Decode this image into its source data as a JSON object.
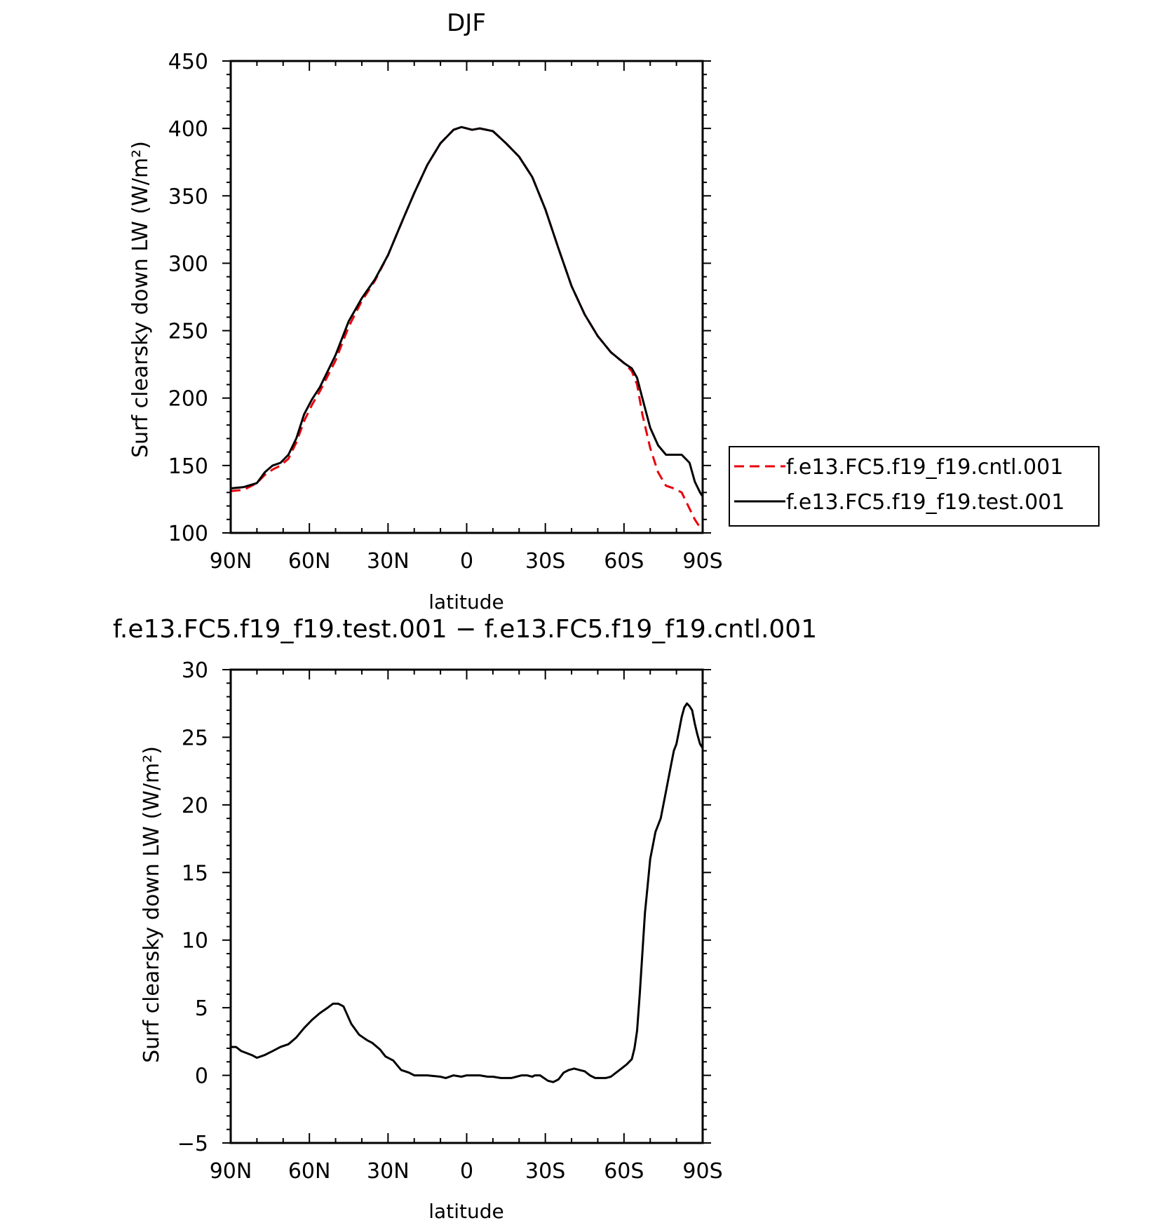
{
  "chart_data": [
    {
      "type": "line",
      "title": "DJF",
      "xlabel": "latitude",
      "ylabel": "Surf clearsky down LW (W/m²)",
      "xlim": [
        90,
        -90
      ],
      "ylim": [
        100,
        450
      ],
      "xticks": [
        90,
        60,
        30,
        0,
        -30,
        -60,
        -90
      ],
      "xticklabels": [
        "90N",
        "60N",
        "30N",
        "0",
        "30S",
        "60S",
        "90S"
      ],
      "yticks": [
        100,
        150,
        200,
        250,
        300,
        350,
        400,
        450
      ],
      "yticklabels": [
        "100",
        "150",
        "200",
        "250",
        "300",
        "350",
        "400",
        "450"
      ],
      "series": [
        {
          "name": "f.e13.FC5.f19_f19.cntl.001",
          "color": "#e8000b",
          "dash": "dashed",
          "x": [
            90,
            85,
            80,
            77,
            74,
            71,
            68,
            65,
            62,
            59,
            56,
            50,
            45,
            40,
            35,
            30,
            27,
            24,
            20,
            15,
            10,
            5,
            2,
            0,
            -2,
            -5,
            -10,
            -15,
            -20,
            -25,
            -30,
            -35,
            -40,
            -45,
            -50,
            -55,
            -60,
            -63,
            -65,
            -67,
            -70,
            -73,
            -76,
            -79,
            -82,
            -85,
            -87,
            -89,
            -90
          ],
          "y": [
            131,
            132,
            137,
            143,
            147,
            150,
            155,
            167,
            183,
            195,
            205,
            228,
            253,
            272,
            287,
            306,
            320,
            334,
            352,
            373,
            389,
            399,
            401,
            400,
            399,
            400,
            398,
            389,
            379,
            364,
            340,
            311,
            283,
            262,
            246,
            234,
            226,
            220,
            210,
            188,
            163,
            145,
            135,
            133,
            130,
            118,
            110,
            104,
            102
          ]
        },
        {
          "name": "f.e13.FC5.f19_f19.test.001",
          "color": "#000000",
          "dash": "solid",
          "x": [
            90,
            85,
            80,
            77,
            74,
            71,
            68,
            65,
            62,
            59,
            56,
            50,
            45,
            40,
            35,
            30,
            27,
            24,
            20,
            15,
            10,
            5,
            2,
            0,
            -2,
            -5,
            -10,
            -15,
            -20,
            -25,
            -30,
            -35,
            -40,
            -45,
            -50,
            -55,
            -60,
            -63,
            -65,
            -67,
            -70,
            -73,
            -76,
            -79,
            -82,
            -85,
            -87,
            -89,
            -90
          ],
          "y": [
            133,
            134,
            137,
            145,
            150,
            152,
            158,
            170,
            188,
            199,
            208,
            232,
            257,
            274,
            288,
            306,
            320,
            334,
            352,
            373,
            389,
            399,
            401,
            400,
            399,
            400,
            398,
            389,
            379,
            364,
            340,
            311,
            283,
            262,
            246,
            234,
            226,
            222,
            215,
            200,
            178,
            165,
            158,
            158,
            158,
            152,
            138,
            130,
            127
          ]
        }
      ],
      "legend": "right"
    },
    {
      "type": "line",
      "title": "f.e13.FC5.f19_f19.test.001 − f.e13.FC5.f19_f19.cntl.001",
      "xlabel": "latitude",
      "ylabel": "Surf clearsky down LW (W/m²)",
      "xlim": [
        90,
        -90
      ],
      "ylim": [
        -5,
        30
      ],
      "xticks": [
        90,
        60,
        30,
        0,
        -30,
        -60,
        -90
      ],
      "xticklabels": [
        "90N",
        "60N",
        "30N",
        "0",
        "30S",
        "60S",
        "90S"
      ],
      "yticks": [
        -5,
        0,
        5,
        10,
        15,
        20,
        25,
        30
      ],
      "yticklabels": [
        "−5",
        "0",
        "5",
        "10",
        "15",
        "20",
        "25",
        "30"
      ],
      "series": [
        {
          "color": "#000000",
          "dash": "solid",
          "x": [
            90,
            88,
            86,
            82,
            80,
            77,
            74,
            71,
            68,
            65,
            62,
            59,
            56,
            53,
            51,
            49,
            47,
            44,
            41,
            38,
            36,
            33,
            31,
            28,
            25,
            22,
            20,
            15,
            10,
            8,
            5,
            2,
            0,
            -3,
            -5,
            -8,
            -10,
            -13,
            -15,
            -17,
            -19,
            -21,
            -23,
            -25,
            -26,
            -28,
            -31,
            -33,
            -35,
            -37,
            -39,
            -41,
            -43,
            -45,
            -47,
            -49,
            -51,
            -53,
            -55,
            -57,
            -59,
            -61,
            -63,
            -64,
            -65,
            -66,
            -67,
            -68,
            -69,
            -70,
            -71,
            -72,
            -74,
            -76,
            -78,
            -79,
            -80,
            -81,
            -82,
            -83,
            -84,
            -85,
            -86,
            -87,
            -88,
            -89,
            -90
          ],
          "y": [
            2.1,
            2.1,
            1.8,
            1.5,
            1.3,
            1.5,
            1.8,
            2.1,
            2.3,
            2.8,
            3.5,
            4.1,
            4.6,
            5.0,
            5.3,
            5.3,
            5.1,
            3.8,
            3.0,
            2.6,
            2.4,
            1.9,
            1.4,
            1.1,
            0.4,
            0.2,
            0.0,
            0.0,
            -0.1,
            -0.2,
            0.0,
            -0.1,
            0.0,
            0.0,
            0.0,
            -0.1,
            -0.1,
            -0.2,
            -0.2,
            -0.2,
            -0.1,
            0.0,
            0.0,
            -0.1,
            0.0,
            0.0,
            -0.4,
            -0.5,
            -0.3,
            0.2,
            0.4,
            0.5,
            0.4,
            0.3,
            0.0,
            -0.2,
            -0.2,
            -0.2,
            -0.1,
            0.2,
            0.5,
            0.8,
            1.2,
            2.0,
            3.3,
            6.0,
            9.0,
            12.0,
            14.0,
            16.0,
            17.0,
            18.0,
            19.0,
            21.0,
            23.0,
            24.0,
            24.5,
            25.5,
            26.5,
            27.2,
            27.5,
            27.3,
            27.0,
            26.0,
            25.2,
            24.5,
            24.2
          ]
        }
      ]
    }
  ]
}
